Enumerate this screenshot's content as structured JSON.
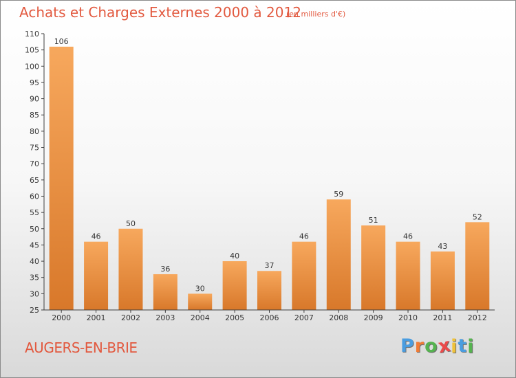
{
  "title": "Achats et Charges Externes 2000 à 2012",
  "subtitle": "(en milliers d'€)",
  "commune": "AUGERS-EN-BRIE",
  "logo_text": "Proxiti",
  "colors": {
    "title": "#e2593f",
    "bar_top": "#f7a85d",
    "bar_bottom": "#d8782a",
    "axis": "#3d3d3d",
    "logo": [
      "#4a9de0",
      "#f07b35",
      "#55b34f",
      "#eb4b4b",
      "#f0c238",
      "#4a9de0",
      "#55b34f"
    ]
  },
  "chart_data": {
    "type": "bar",
    "title": "Achats et Charges Externes 2000 à 2012",
    "subtitle": "(en milliers d'€)",
    "categories": [
      "2000",
      "2001",
      "2002",
      "2003",
      "2004",
      "2005",
      "2006",
      "2007",
      "2008",
      "2009",
      "2010",
      "2011",
      "2012"
    ],
    "values": [
      106,
      46,
      50,
      36,
      30,
      40,
      37,
      46,
      59,
      51,
      46,
      43,
      52
    ],
    "xlabel": "",
    "ylabel": "",
    "ylim": [
      25,
      110
    ],
    "yticks": [
      25,
      30,
      35,
      40,
      45,
      50,
      55,
      60,
      65,
      70,
      75,
      80,
      85,
      90,
      95,
      100,
      105,
      110
    ],
    "grid": false,
    "legend": "none"
  }
}
